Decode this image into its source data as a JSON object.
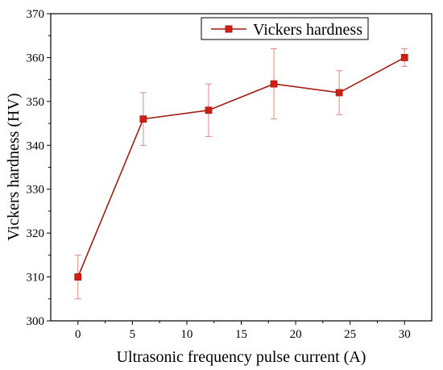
{
  "chart_data": {
    "type": "line",
    "xlabel": "Ultrasonic frequency pulse current (A)",
    "ylabel": "Vickers hardness (HV)",
    "xlim": [
      -2.5,
      32.5
    ],
    "ylim": [
      300,
      370
    ],
    "xticks": [
      0,
      5,
      10,
      15,
      20,
      25,
      30
    ],
    "yticks": [
      300,
      310,
      320,
      330,
      340,
      350,
      360,
      370
    ],
    "grid": false,
    "legend_position": "top-right",
    "series": [
      {
        "name": "Vickers hardness",
        "color": "#a51c12",
        "marker_color": "#d21f14",
        "marker": "square",
        "x": [
          0,
          6,
          12,
          18,
          24,
          30
        ],
        "y": [
          310,
          346,
          348,
          354,
          352,
          360
        ],
        "error": [
          5,
          6,
          6,
          8,
          5,
          2
        ]
      }
    ]
  }
}
